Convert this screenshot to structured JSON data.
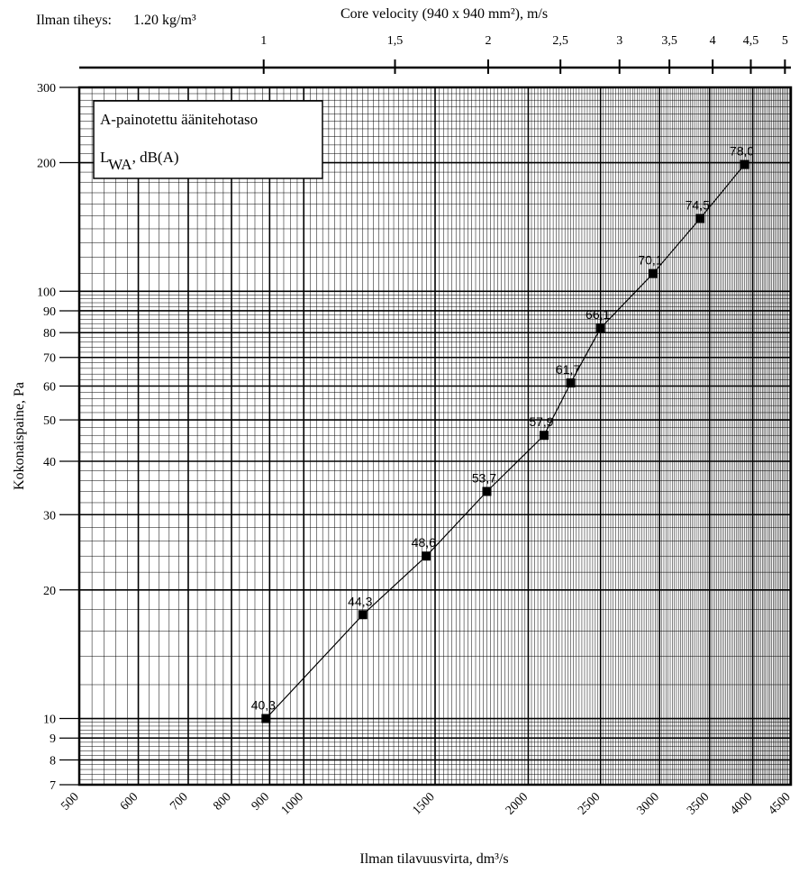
{
  "header": {
    "density_label": "Ilman tiheys:",
    "density_value": "1.20 kg/m³",
    "top_axis_title": "Core velocity (940 x 940 mm²), m/s"
  },
  "legend_box": {
    "line1": "A-painotettu äänitehotaso",
    "line2_main": "L",
    "line2_sub": "WA",
    "line2_rest": ", dB(A)"
  },
  "chart_data": {
    "type": "line",
    "xlabel": "Ilman tilavuusvirta, dm³/s",
    "ylabel": "Kokonaispaine, Pa",
    "x_scale": "log",
    "y_scale": "log",
    "xlim": [
      500,
      4500
    ],
    "ylim": [
      7,
      300
    ],
    "grid": true,
    "x_ticks": [
      500,
      600,
      700,
      800,
      900,
      1000,
      1500,
      2000,
      2500,
      3000,
      3500,
      4000,
      4500
    ],
    "x_tick_labels": [
      "500",
      "600",
      "700",
      "800",
      "900",
      "1000",
      "1500",
      "2000",
      "2500",
      "3000",
      "3500",
      "4000",
      "4500"
    ],
    "y_ticks": [
      7,
      8,
      9,
      10,
      20,
      30,
      40,
      50,
      60,
      70,
      80,
      90,
      100,
      200,
      300
    ],
    "y_tick_labels": [
      "7",
      "8",
      "9",
      "10",
      "20",
      "30",
      "40",
      "50",
      "60",
      "70",
      "80",
      "90",
      "100",
      "200",
      "300"
    ],
    "top_axis": {
      "title": "Core velocity (940 x 940 mm²), m/s",
      "ticks": [
        1,
        1.5,
        2,
        2.5,
        3,
        3.5,
        4,
        4.5,
        5
      ],
      "tick_labels": [
        "1",
        "1,5",
        "2",
        "2,5",
        "3",
        "3,5",
        "4",
        "4,5",
        "5"
      ]
    },
    "series": [
      {
        "x": [
          890,
          1200,
          1460,
          1760,
          2100,
          2280,
          2500,
          2940,
          3400,
          3900
        ],
        "y": [
          10,
          17.5,
          24,
          34,
          46,
          61,
          82,
          110,
          148,
          198
        ],
        "point_labels": [
          "40,3",
          "44,3",
          "48,6",
          "53,7",
          "57,9",
          "61,7",
          "66,1",
          "70,1",
          "74,5",
          "78,0"
        ]
      }
    ]
  }
}
